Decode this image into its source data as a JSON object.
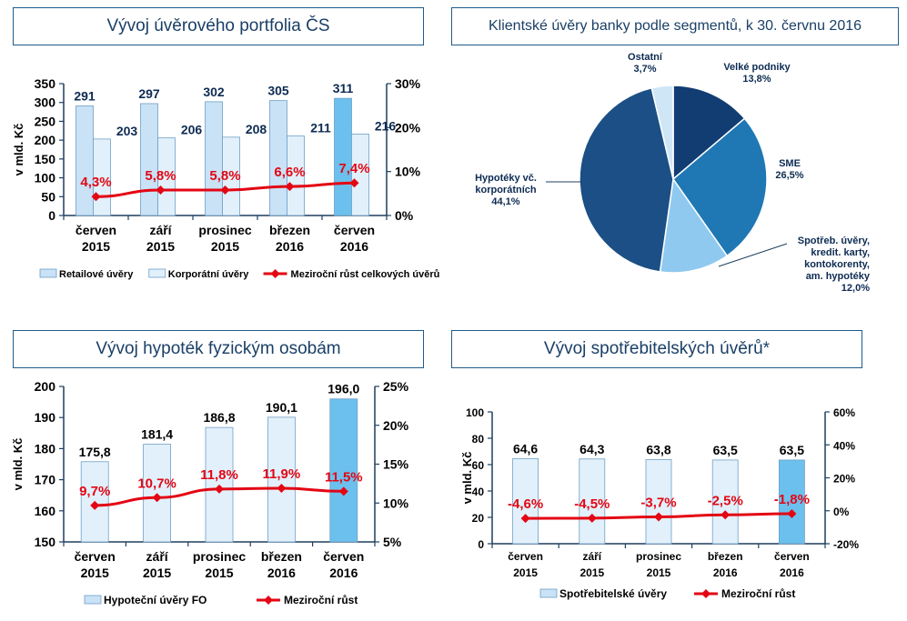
{
  "colors": {
    "bar_light": "#c9e2f6",
    "bar_lighter": "#e2f0fb",
    "bar_highlight": "#6cc0ee",
    "bar_stroke": "#6f9fc6",
    "line_red": "#e30613",
    "axis": "#1f3f5f",
    "pie_dark_navy": "#123d73",
    "pie_mid_blue": "#1f77b4",
    "pie_navy": "#1b4f85",
    "pie_light": "#8fc9ef",
    "pie_pale": "#cfe6f7"
  },
  "chart_data": [
    {
      "type": "bar",
      "title": "Vývoj úvěrového portfolia ČS",
      "ylabel": "v mld. Kč",
      "ylim": [
        0,
        350
      ],
      "y_ticks": [
        "0",
        "50",
        "100",
        "150",
        "200",
        "250",
        "300",
        "350"
      ],
      "y2lim": [
        0,
        30
      ],
      "y2_ticks": [
        "0%",
        "10%",
        "20%",
        "30%"
      ],
      "categories": [
        "červen\n2015",
        "září\n2015",
        "prosinec\n2015",
        "březen\n2016",
        "červen\n2016"
      ],
      "category_lines": [
        [
          "červen",
          "2015"
        ],
        [
          "září",
          "2015"
        ],
        [
          "prosinec",
          "2015"
        ],
        [
          "březen",
          "2016"
        ],
        [
          "červen",
          "2016"
        ]
      ],
      "series": [
        {
          "name": "Retailové úvěry",
          "type": "bar",
          "values": [
            291,
            297,
            302,
            305,
            311
          ],
          "labels": [
            "291",
            "297",
            "302",
            "305",
            "311"
          ]
        },
        {
          "name": "Korporátní úvěry",
          "type": "bar",
          "values": [
            203,
            206,
            208,
            211,
            216
          ],
          "labels": [
            "203",
            "206",
            "208",
            "211",
            "216"
          ]
        },
        {
          "name": "Meziroční růst celkových úvěrů",
          "type": "line",
          "axis": "right",
          "values": [
            4.3,
            5.8,
            5.8,
            6.6,
            7.4
          ],
          "labels": [
            "4,3%",
            "5,8%",
            "5,8%",
            "6,6%",
            "7,4%"
          ]
        }
      ]
    },
    {
      "type": "pie",
      "title": "Klientské úvěry banky podle segmentů, k 30. červnu 2016",
      "slices": [
        {
          "name": "Velké podniky",
          "value": 13.8,
          "label_lines": [
            "Velké podniky",
            "13,8%"
          ],
          "color": "#123d73"
        },
        {
          "name": "SME",
          "value": 26.5,
          "label_lines": [
            "SME",
            "26,5%"
          ],
          "color": "#1f77b4"
        },
        {
          "name": "Spotřeb. úvěry, kredit. karty, kontokorenty, am. hypotéky",
          "value": 12.0,
          "label_lines": [
            "Spotřeb. úvěry,",
            "kredit. karty,",
            "kontokorenty,",
            "am. hypotéky",
            "12,0%"
          ],
          "color": "#8fc9ef"
        },
        {
          "name": "Hypotéky vč. korporátních",
          "value": 44.1,
          "label_lines": [
            "Hypotéky vč.",
            "korporátních",
            "44,1%"
          ],
          "color": "#1b4f85"
        },
        {
          "name": "Ostatní",
          "value": 3.7,
          "label_lines": [
            "Ostatní",
            "3,7%"
          ],
          "color": "#cfe6f7"
        }
      ]
    },
    {
      "type": "bar",
      "title": "Vývoj hypoték fyzickým osobám",
      "ylabel": "v mld. Kč",
      "ylim": [
        150,
        200
      ],
      "y_ticks": [
        "150",
        "160",
        "170",
        "180",
        "190",
        "200"
      ],
      "y2lim": [
        5,
        25
      ],
      "y2_ticks": [
        "5%",
        "10%",
        "15%",
        "20%",
        "25%"
      ],
      "category_lines": [
        [
          "červen",
          "2015"
        ],
        [
          "září",
          "2015"
        ],
        [
          "prosinec",
          "2015"
        ],
        [
          "březen",
          "2016"
        ],
        [
          "červen",
          "2016"
        ]
      ],
      "series": [
        {
          "name": "Hypoteční úvěry FO",
          "type": "bar",
          "values": [
            175.8,
            181.4,
            186.8,
            190.1,
            196.0
          ],
          "labels": [
            "175,8",
            "181,4",
            "186,8",
            "190,1",
            "196,0"
          ]
        },
        {
          "name": "Meziroční růst",
          "type": "line",
          "axis": "right",
          "values": [
            9.7,
            10.7,
            11.8,
            11.9,
            11.5
          ],
          "labels": [
            "9,7%",
            "10,7%",
            "11,8%",
            "11,9%",
            "11,5%"
          ]
        }
      ]
    },
    {
      "type": "bar",
      "title": "Vývoj spotřebitelských úvěrů*",
      "ylabel": "v mld. Kč",
      "ylim": [
        0,
        100
      ],
      "y_ticks": [
        "0",
        "20",
        "40",
        "60",
        "80",
        "100"
      ],
      "y2lim": [
        -20,
        60
      ],
      "y2_ticks": [
        "-20%",
        "0%",
        "20%",
        "40%",
        "60%"
      ],
      "category_lines": [
        [
          "červen",
          "2015"
        ],
        [
          "září",
          "2015"
        ],
        [
          "prosinec",
          "2015"
        ],
        [
          "březen",
          "2016"
        ],
        [
          "červen",
          "2016"
        ]
      ],
      "series": [
        {
          "name": "Spotřebitelské úvěry",
          "type": "bar",
          "values": [
            64.6,
            64.3,
            63.8,
            63.5,
            63.5
          ],
          "labels": [
            "64,6",
            "64,3",
            "63,8",
            "63,5",
            "63,5"
          ]
        },
        {
          "name": "Meziroční růst",
          "type": "line",
          "axis": "right",
          "values": [
            -4.6,
            -4.5,
            -3.7,
            -2.5,
            -1.8
          ],
          "labels": [
            "-4,6%",
            "-4,5%",
            "-3,7%",
            "-2,5%",
            "-1,8%"
          ]
        }
      ]
    }
  ]
}
